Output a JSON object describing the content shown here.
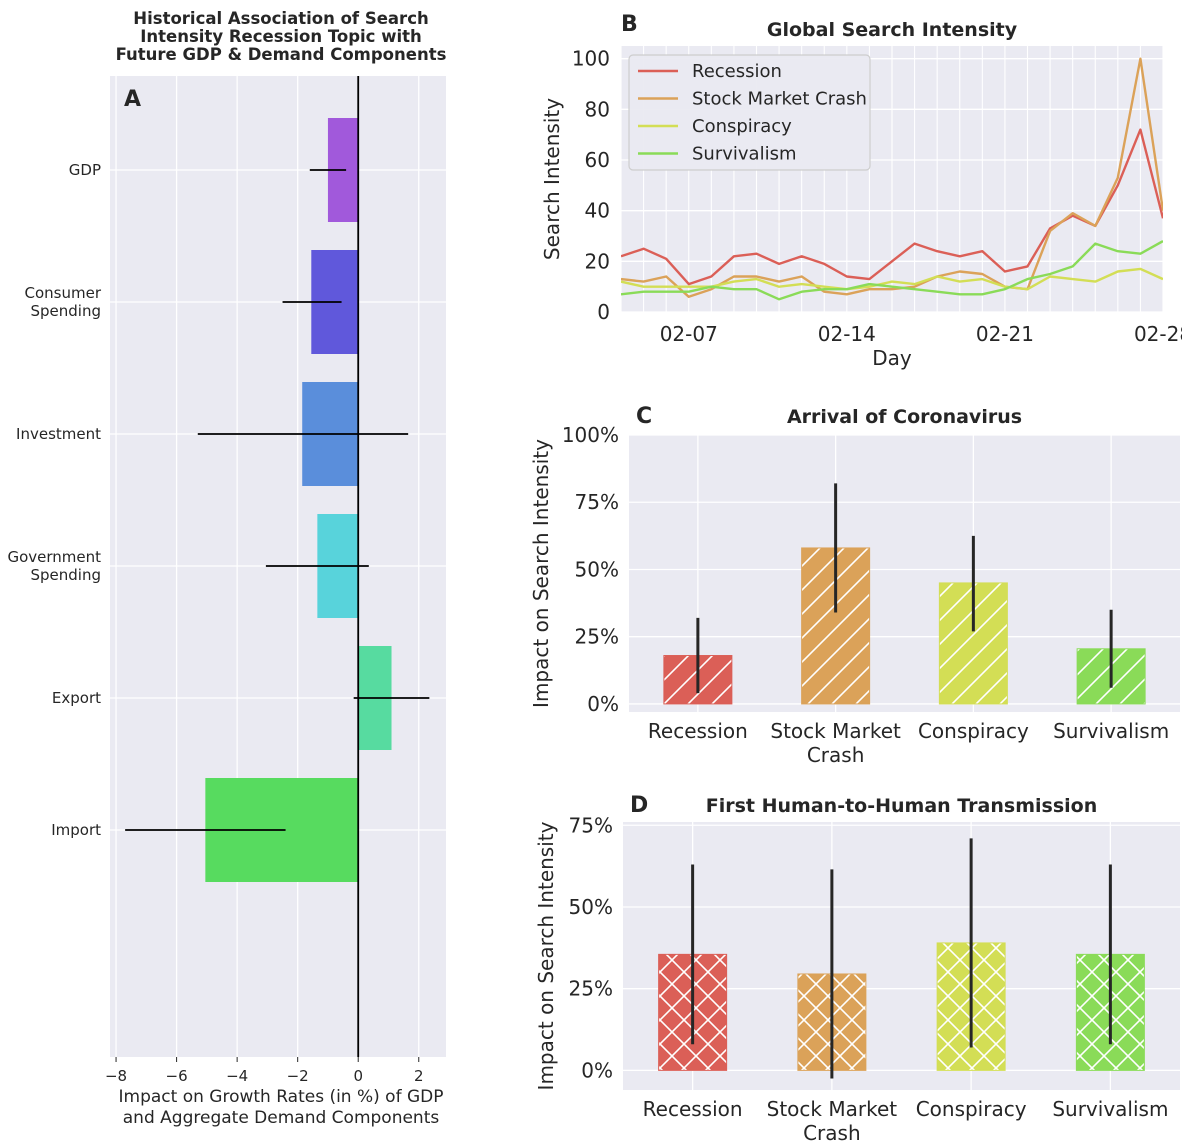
{
  "colors": {
    "plot_bg": "#EAEAF2",
    "grid": "#FFFFFF",
    "text": "#262626",
    "recession": "#DB5F57",
    "stock_market_crash": "#DBA259",
    "conspiracy": "#D3DE55",
    "survivalism": "#8ADB58",
    "gdp": "#A159DB",
    "consumer_spending": "#6058DB",
    "investment": "#5A8EDB",
    "government_spending": "#58D3DB",
    "export": "#57DBA0",
    "import": "#57DB5F"
  },
  "chart_data": [
    {
      "panel": "A",
      "type": "bar",
      "orientation": "horizontal",
      "title": "Historical Association of Search Intensity Recession Topic with Future GDP & Demand Components",
      "title_lines": [
        "Historical Association of Search",
        "Intensity Recession Topic with",
        "Future GDP & Demand Components"
      ],
      "xlabel": "Impact on Growth Rates (in %) of GDP and Aggregate Demand Components",
      "xlabel_lines": [
        "Impact on Growth Rates (in %) of GDP",
        "and Aggregate Demand Components"
      ],
      "categories": [
        "GDP",
        "Consumer Spending",
        "Investment",
        "Government Spending",
        "Export",
        "Import"
      ],
      "category_lines": [
        [
          "GDP"
        ],
        [
          "Consumer",
          "Spending"
        ],
        [
          "Investment"
        ],
        [
          "Government",
          "Spending"
        ],
        [
          "Export"
        ],
        [
          "Import"
        ]
      ],
      "values": [
        -1.0,
        -1.55,
        -1.85,
        -1.35,
        1.1,
        -5.05
      ],
      "error_low": [
        -1.6,
        -2.5,
        -5.3,
        -3.05,
        -0.15,
        -7.7
      ],
      "error_high": [
        -0.4,
        -0.55,
        1.65,
        0.35,
        2.35,
        -2.4
      ],
      "xlim": [
        -8.2,
        2.9
      ],
      "xticks": [
        "−8",
        "−6",
        "−4",
        "−2",
        "0",
        "2"
      ],
      "xtick_values": [
        -8,
        -6,
        -4,
        -2,
        0,
        2
      ],
      "grid": true
    },
    {
      "panel": "B",
      "type": "line",
      "title": "Global Search Intensity",
      "xlabel": "Day",
      "ylabel": "Search Intensity",
      "x_start_day": 4,
      "xticks": [
        "02-07",
        "02-14",
        "02-21",
        "02-28"
      ],
      "xtick_days": [
        7,
        14,
        21,
        28
      ],
      "yticks": [
        "0",
        "20",
        "40",
        "60",
        "80",
        "100"
      ],
      "ylim": [
        0,
        105
      ],
      "legend_position": "top-left",
      "grid": true,
      "series": [
        {
          "name": "Recession",
          "values": [
            22,
            25,
            21,
            11,
            14,
            22,
            23,
            19,
            22,
            19,
            14,
            13,
            20,
            27,
            24,
            22,
            24,
            16,
            18,
            33,
            38,
            34,
            50,
            72,
            37
          ]
        },
        {
          "name": "Stock Market Crash",
          "values": [
            13,
            12,
            14,
            6,
            9,
            14,
            14,
            12,
            14,
            8,
            7,
            9,
            9,
            10,
            14,
            16,
            15,
            10,
            9,
            32,
            39,
            34,
            53,
            100,
            40
          ]
        },
        {
          "name": "Conspiracy",
          "values": [
            12,
            10,
            10,
            10,
            10,
            12,
            13,
            10,
            11,
            10,
            9,
            10,
            12,
            11,
            14,
            12,
            13,
            10,
            9,
            14,
            13,
            12,
            16,
            17,
            13
          ]
        },
        {
          "name": "Survivalism",
          "values": [
            7,
            8,
            8,
            8,
            10,
            9,
            9,
            5,
            8,
            9,
            9,
            11,
            10,
            9,
            8,
            7,
            7,
            9,
            13,
            15,
            18,
            27,
            24,
            23,
            28
          ]
        }
      ]
    },
    {
      "panel": "C",
      "type": "bar",
      "title": "Arrival of Coronavirus",
      "ylabel": "Impact on Search Intensity",
      "categories": [
        "Recession",
        "Stock Market Crash",
        "Conspiracy",
        "Survivalism"
      ],
      "category_lines": [
        [
          "Recession"
        ],
        [
          "Stock Market",
          "Crash"
        ],
        [
          "Conspiracy"
        ],
        [
          "Survivalism"
        ]
      ],
      "values": [
        18,
        58,
        45,
        20.5
      ],
      "error_low": [
        4,
        34,
        27,
        6
      ],
      "error_high": [
        32,
        82,
        62.5,
        35
      ],
      "ylim": [
        -3,
        100
      ],
      "yticks": [
        "0%",
        "25%",
        "50%",
        "75%",
        "100%"
      ],
      "ytick_values": [
        0,
        25,
        50,
        75,
        100
      ],
      "hatch": "diagonal",
      "grid": true
    },
    {
      "panel": "D",
      "type": "bar",
      "title": "First Human-to-Human Transmission",
      "ylabel": "Impact on Search Intensity",
      "categories": [
        "Recession",
        "Stock Market Crash",
        "Conspiracy",
        "Survivalism"
      ],
      "category_lines": [
        [
          "Recession"
        ],
        [
          "Stock Market",
          "Crash"
        ],
        [
          "Conspiracy"
        ],
        [
          "Survivalism"
        ]
      ],
      "values": [
        35.5,
        29.5,
        39,
        35.5
      ],
      "error_low": [
        8,
        -2.5,
        7,
        8
      ],
      "error_high": [
        63,
        61.5,
        71,
        63
      ],
      "ylim": [
        -6,
        76
      ],
      "yticks": [
        "0%",
        "25%",
        "50%",
        "75%"
      ],
      "ytick_values": [
        0,
        25,
        50,
        75
      ],
      "hatch": "crosshatch",
      "grid": true
    }
  ]
}
